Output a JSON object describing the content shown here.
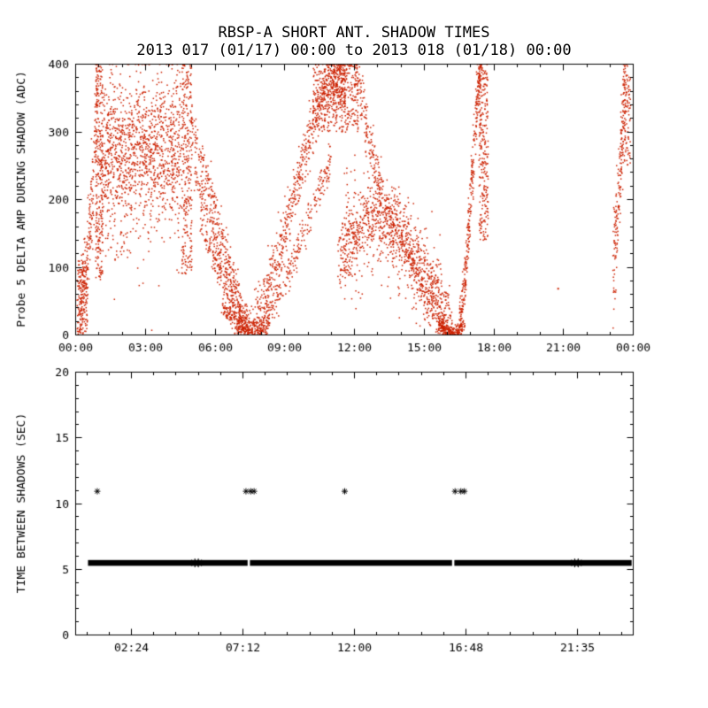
{
  "page": {
    "title": "RBSP-A SHORT ANT. SHADOW TIMES",
    "subtitle": "2013 017 (01/17) 00:00 to 2013 018 (01/18) 00:00",
    "background": "#ffffff",
    "axis_color": "#000000"
  },
  "chart_data": [
    {
      "type": "scatter",
      "panel": "top",
      "title": "RBSP-A SHORT ANT. SHADOW TIMES",
      "xlabel": "",
      "ylabel": "Probe 5 DELTA AMP DURING SHADOW (ADC)",
      "xlim": [
        0,
        24
      ],
      "ylim": [
        0,
        400
      ],
      "x_ticks": [
        {
          "value": 0,
          "label": "00:00"
        },
        {
          "value": 3,
          "label": "03:00"
        },
        {
          "value": 6,
          "label": "06:00"
        },
        {
          "value": 9,
          "label": "09:00"
        },
        {
          "value": 12,
          "label": "12:00"
        },
        {
          "value": 15,
          "label": "15:00"
        },
        {
          "value": 18,
          "label": "18:00"
        },
        {
          "value": 21,
          "label": "21:00"
        },
        {
          "value": 24,
          "label": "00:00"
        }
      ],
      "y_ticks": [
        0,
        100,
        200,
        300,
        400
      ],
      "x_minor_divisions": 3,
      "y_minor_divisions": 5,
      "marker_color": "#cc2200",
      "clusters": [
        {
          "name": "left-low-blob",
          "kind": "box",
          "x": [
            0.05,
            0.5
          ],
          "y": [
            0,
            110
          ],
          "n": 160
        },
        {
          "name": "left-rise",
          "kind": "curve",
          "pts": [
            [
              0.15,
              30
            ],
            [
              0.5,
              110
            ],
            [
              0.75,
              220
            ],
            [
              0.95,
              390
            ]
          ],
          "spread": 35,
          "n": 220
        },
        {
          "name": "left-column",
          "kind": "box",
          "x": [
            0.85,
            1.15
          ],
          "y": [
            80,
            400
          ],
          "n": 260
        },
        {
          "name": "morning-cloud",
          "kind": "curve",
          "pts": [
            [
              1.1,
              250
            ],
            [
              1.6,
              285
            ],
            [
              2.1,
              265
            ],
            [
              2.6,
              280
            ],
            [
              3.1,
              270
            ],
            [
              3.6,
              275
            ],
            [
              4.1,
              265
            ],
            [
              4.5,
              285
            ]
          ],
          "spread": 48,
          "n": 1000
        },
        {
          "name": "morning-cloud-halo",
          "kind": "curve",
          "pts": [
            [
              1.1,
              255
            ],
            [
              2.0,
              275
            ],
            [
              3.0,
              270
            ],
            [
              4.5,
              280
            ]
          ],
          "spread": 90,
          "n": 240
        },
        {
          "name": "morning-low-sparse",
          "kind": "box",
          "x": [
            1.1,
            2.4
          ],
          "y": [
            110,
            215
          ],
          "n": 55
        },
        {
          "name": "pre-dawn-column",
          "kind": "box",
          "x": [
            4.55,
            5.0
          ],
          "y": [
            90,
            400
          ],
          "n": 280
        },
        {
          "name": "descent-a",
          "kind": "curve",
          "pts": [
            [
              5.0,
              310
            ],
            [
              5.6,
              240
            ],
            [
              6.2,
              160
            ],
            [
              6.8,
              80
            ],
            [
              7.3,
              20
            ],
            [
              7.55,
              4
            ]
          ],
          "spread": 14,
          "n": 260
        },
        {
          "name": "descent-b",
          "kind": "curve",
          "pts": [
            [
              5.1,
              240
            ],
            [
              5.7,
              180
            ],
            [
              6.3,
              110
            ],
            [
              6.9,
              50
            ],
            [
              7.4,
              8
            ]
          ],
          "spread": 12,
          "n": 220
        },
        {
          "name": "descent-c",
          "kind": "curve",
          "pts": [
            [
              5.3,
              170
            ],
            [
              6.0,
              110
            ],
            [
              6.6,
              55
            ],
            [
              7.2,
              15
            ],
            [
              7.6,
              2
            ]
          ],
          "spread": 10,
          "n": 200
        },
        {
          "name": "trough-0730",
          "kind": "curve",
          "pts": [
            [
              6.3,
              40
            ],
            [
              6.9,
              18
            ],
            [
              7.5,
              3
            ],
            [
              7.9,
              4
            ],
            [
              8.3,
              16
            ]
          ],
          "spread": 7,
          "n": 300
        },
        {
          "name": "rise-main",
          "kind": "curve",
          "pts": [
            [
              7.6,
              5
            ],
            [
              8.2,
              60
            ],
            [
              8.8,
              130
            ],
            [
              9.4,
              210
            ],
            [
              10.0,
              290
            ],
            [
              10.6,
              355
            ],
            [
              11.1,
              395
            ]
          ],
          "spread": 22,
          "n": 560
        },
        {
          "name": "rise-secondary",
          "kind": "curve",
          "pts": [
            [
              7.8,
              3
            ],
            [
              8.5,
              40
            ],
            [
              9.2,
              95
            ],
            [
              9.9,
              160
            ],
            [
              10.5,
              215
            ],
            [
              11.0,
              255
            ]
          ],
          "spread": 15,
          "n": 250
        },
        {
          "name": "noon-top-cloud",
          "kind": "box",
          "x": [
            10.2,
            12.15
          ],
          "y": [
            300,
            400
          ],
          "n": 430
        },
        {
          "name": "noon-column",
          "kind": "box",
          "x": [
            11.05,
            11.6
          ],
          "y": [
            340,
            400
          ],
          "n": 150
        },
        {
          "name": "noon-descent",
          "kind": "curve",
          "pts": [
            [
              12.05,
              395
            ],
            [
              12.4,
              330
            ],
            [
              12.8,
              260
            ],
            [
              13.2,
              205
            ]
          ],
          "spread": 17,
          "n": 170
        },
        {
          "name": "afternoon-hump",
          "kind": "curve",
          "pts": [
            [
              11.3,
              110
            ],
            [
              11.8,
              145
            ],
            [
              12.4,
              165
            ],
            [
              13.0,
              175
            ],
            [
              13.6,
              165
            ],
            [
              14.2,
              140
            ],
            [
              14.8,
              105
            ],
            [
              15.3,
              70
            ],
            [
              15.8,
              35
            ],
            [
              16.2,
              8
            ]
          ],
          "spread": 27,
          "n": 900
        },
        {
          "name": "afternoon-hump-halo",
          "kind": "curve",
          "pts": [
            [
              11.5,
              130
            ],
            [
              13.0,
              170
            ],
            [
              14.5,
              115
            ],
            [
              15.8,
              40
            ]
          ],
          "spread": 55,
          "n": 230
        },
        {
          "name": "descent-to-1620",
          "kind": "curve",
          "pts": [
            [
              13.3,
              200
            ],
            [
              13.9,
              150
            ],
            [
              14.5,
              100
            ],
            [
              15.1,
              55
            ],
            [
              15.7,
              20
            ],
            [
              16.2,
              3
            ]
          ],
          "spread": 10,
          "n": 210
        },
        {
          "name": "trough-1620",
          "kind": "curve",
          "pts": [
            [
              15.6,
              16
            ],
            [
              16.0,
              6
            ],
            [
              16.4,
              3
            ],
            [
              16.7,
              12
            ]
          ],
          "spread": 6,
          "n": 220
        },
        {
          "name": "evening-rise",
          "kind": "curve",
          "pts": [
            [
              16.5,
              10
            ],
            [
              16.7,
              60
            ],
            [
              16.9,
              150
            ],
            [
              17.1,
              260
            ],
            [
              17.3,
              360
            ],
            [
              17.45,
              398
            ]
          ],
          "spread": 15,
          "n": 320
        },
        {
          "name": "evening-column",
          "kind": "box",
          "x": [
            17.35,
            17.75
          ],
          "y": [
            140,
            400
          ],
          "n": 260
        },
        {
          "name": "midnight-cluster",
          "kind": "curve",
          "pts": [
            [
              23.15,
              90
            ],
            [
              23.35,
              200
            ],
            [
              23.55,
              320
            ],
            [
              23.72,
              398
            ]
          ],
          "spread": 35,
          "n": 210
        },
        {
          "name": "midnight-top",
          "kind": "box",
          "x": [
            23.6,
            23.88
          ],
          "y": [
            250,
            400
          ],
          "n": 80
        }
      ],
      "singles": [
        [
          20.75,
          69
        ]
      ]
    },
    {
      "type": "scatter",
      "panel": "bottom",
      "title": "",
      "xlabel": "",
      "ylabel": "TIME BETWEEN SHADOWS (SEC)",
      "xlim": [
        0,
        24
      ],
      "ylim": [
        0,
        20
      ],
      "x_ticks": [
        {
          "value": 2.4,
          "label": "02:24"
        },
        {
          "value": 7.2,
          "label": "07:12"
        },
        {
          "value": 12,
          "label": "12:00"
        },
        {
          "value": 16.8,
          "label": "16:48"
        },
        {
          "value": 21.583,
          "label": "21:35"
        }
      ],
      "y_ticks": [
        0,
        5,
        10,
        15,
        20
      ],
      "x_minor_divisions": 5,
      "y_minor_divisions": 5,
      "marker_color": "#000000",
      "band": {
        "y": 5.45,
        "half_height_sec": 0.22,
        "segments": [
          [
            0.55,
            7.42
          ],
          [
            7.52,
            16.22
          ],
          [
            16.32,
            23.95
          ]
        ],
        "spikes": [
          5.15,
          5.3,
          21.5,
          21.65
        ]
      },
      "outliers": {
        "y": 10.9,
        "x": [
          0.95,
          7.35,
          7.55,
          7.7,
          11.6,
          16.35,
          16.6,
          16.75
        ]
      }
    }
  ]
}
